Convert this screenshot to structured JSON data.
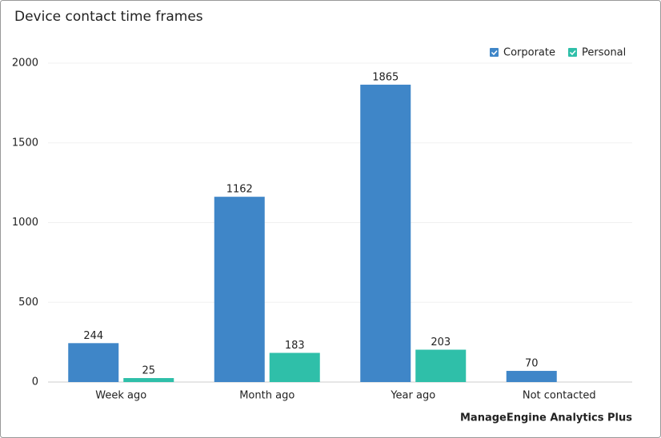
{
  "chart_data": {
    "type": "bar",
    "title": "Device contact time frames",
    "categories": [
      "Week ago",
      "Month ago",
      "Year ago",
      "Not contacted"
    ],
    "series": [
      {
        "name": "Corporate",
        "color": "#3f86c8",
        "values": [
          244,
          1162,
          1865,
          70
        ]
      },
      {
        "name": "Personal",
        "color": "#2fbfa9",
        "values": [
          25,
          183,
          203,
          null
        ]
      }
    ],
    "ylim": [
      0,
      2000
    ],
    "yticks": [
      0,
      500,
      1000,
      1500,
      2000
    ],
    "grid": true,
    "legend": "top-right",
    "branding": "ManageEngine Analytics Plus"
  }
}
